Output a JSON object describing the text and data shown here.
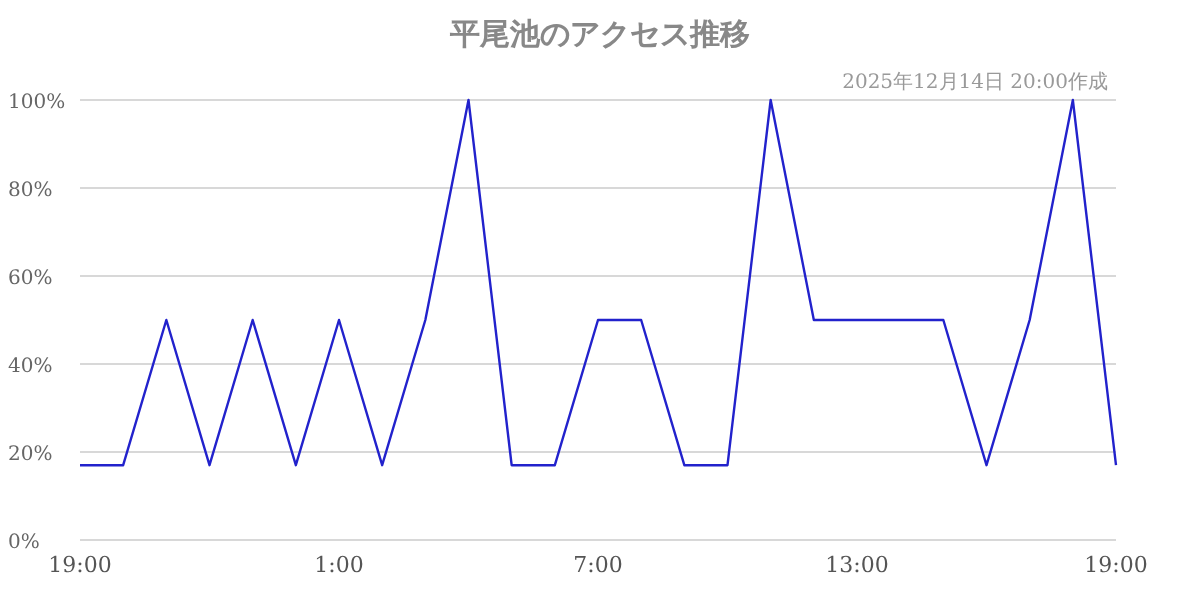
{
  "chart_data": {
    "type": "line",
    "title": "平尾池のアクセス推移",
    "annotations": [
      "2025年12月14日 20:00作成"
    ],
    "categories": [
      "19:00",
      null,
      null,
      null,
      null,
      null,
      "1:00",
      null,
      null,
      null,
      null,
      null,
      "7:00",
      null,
      null,
      null,
      null,
      null,
      "13:00",
      null,
      null,
      null,
      null,
      null,
      "19:00"
    ],
    "series": [
      {
        "color": "#2222cc",
        "values": [
          17,
          17,
          50,
          17,
          50,
          17,
          50,
          17,
          50,
          100,
          17,
          17,
          50,
          50,
          17,
          17,
          100,
          50,
          50,
          50,
          50,
          17,
          50,
          100,
          17
        ]
      }
    ],
    "ylim": [
      0,
      100
    ],
    "yticks": [
      {
        "value": 0,
        "label": "0%"
      },
      {
        "value": 20,
        "label": "20%"
      },
      {
        "value": 40,
        "label": "40%"
      },
      {
        "value": 60,
        "label": "60%"
      },
      {
        "value": 80,
        "label": "80%"
      },
      {
        "value": 100,
        "label": "100%"
      }
    ],
    "grid": "y",
    "marker": "none",
    "line_style": "solid"
  }
}
